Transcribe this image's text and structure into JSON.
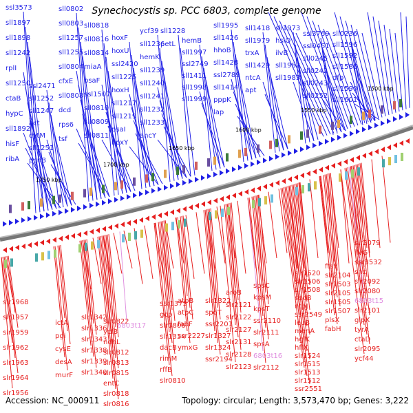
{
  "title": "Synechocystis sp. PCC 6803, complete genome",
  "accession": "Accession: NC_000911",
  "stats": "Topology: circular; Length: 3,573,470 bp; Genes: 3,222",
  "colors": {
    "forward": "#1f1fe6",
    "reverse": "#e61f1f",
    "rna": "#e090e0",
    "axis": "#777777"
  },
  "kbp_markers": [
    "1500 kbp",
    "1550 kbp",
    "1600 kbp",
    "1650 kbp",
    "1700 kbp",
    "1750 kbp"
  ],
  "top_labels": [
    "ssl3573",
    "sll1897",
    "sll1898",
    "sll1242",
    "rplI",
    "sll1250",
    "ctaB",
    "hypC",
    "sll1892",
    "hisF",
    "ribA",
    "ssl2471",
    "sll1252",
    "sll1247",
    "act",
    "cytM",
    "sll1251",
    "pcnB",
    "sll0802",
    "sll0803",
    "sll1257",
    "sll1255",
    "sll0804",
    "cfxE",
    "sll0808",
    "dcd",
    "rps6",
    "tsf",
    "sll0818",
    "sll0816",
    "sll0814",
    "miaA",
    "psaF",
    "ssl1507",
    "sll0810",
    "sll0809",
    "sll0811",
    "hoxF",
    "hoxU",
    "ssl2420",
    "sll1225",
    "hoxH",
    "sll1217",
    "sll1219",
    "psaI",
    "hoxY",
    "ycf39",
    "sll1236",
    "hemK",
    "sll1239",
    "sll1240",
    "sll1241",
    "sll1232",
    "sll1233",
    "ancY",
    "sll1228",
    "petL",
    "hemB",
    "sll1997",
    "ssl2749",
    "sll1411",
    "sll1998",
    "sll1999",
    "sll1995",
    "sll1426",
    "hhoB",
    "sll1428",
    "ssl2789",
    "sll1414",
    "pppK",
    "lap",
    "sll1418",
    "sll1979",
    "trxA",
    "sll1429",
    "ntcA",
    "apt",
    "sll1973",
    "hslO",
    "ilvB",
    "sll1982",
    "sll1983",
    "ssl3769",
    "ssl0461",
    "sll0245",
    "sll0242",
    "sll0243",
    "sll0252",
    "sll0236",
    "sll1596",
    "sll1592",
    "sll1586",
    "dfp",
    "sll1590",
    "sll1601",
    "mntA"
  ],
  "bottom_labels": [
    "slr1968",
    "slr1957",
    "slr1959",
    "slr1962",
    "slr1963",
    "slr1964",
    "slr1956",
    "ictA",
    "pgi",
    "cysE",
    "desA",
    "murF",
    "slr1342",
    "slr1336",
    "slr1343",
    "slr1338",
    "slr1339",
    "slr1340",
    "slr0822",
    "ycf3",
    "ndhL",
    "slr0812",
    "slr0813",
    "slr0815",
    "entC",
    "slr0818",
    "slr0816",
    "6803t17",
    "ssr1375",
    "gcp",
    "slr0806",
    "slr1334",
    "dacB",
    "rimM",
    "rffB",
    "slr0810",
    "atpB",
    "atpC",
    "fabF",
    "ssr2227",
    "ymxG",
    "slr1322",
    "spoT",
    "ssr2201",
    "slr1327",
    "slr1324",
    "ssr2194",
    "aroB",
    "slr2121",
    "slr2122",
    "slr2127",
    "slr2131",
    "slr2128",
    "slr2123",
    "spsC",
    "kpsM",
    "kpsT",
    "ssr2110",
    "slr2111",
    "spsA",
    "6803t16",
    "slr2112",
    "slr1520",
    "slr1506",
    "slr1508",
    "sodB",
    "ntpJ",
    "ssr2549",
    "leuB",
    "menA",
    "hglK",
    "hflX",
    "slr1524",
    "slr1515",
    "slr1513",
    "slr1512",
    "ssr2551",
    "ftsY",
    "slr2104",
    "slr1503",
    "slr2105",
    "slr1505",
    "slr1507",
    "plsX",
    "fabH",
    "slr2079",
    "ilvG",
    "ssr3532",
    "shc",
    "slr2092",
    "slr2080",
    "6803t15",
    "slr2101",
    "glpX",
    "tyrA",
    "ctaD",
    "slr2095",
    "ycf44",
    "slr2098",
    "slr2096",
    "glbN",
    "slr2099",
    "slr2100",
    "slr2103"
  ]
}
